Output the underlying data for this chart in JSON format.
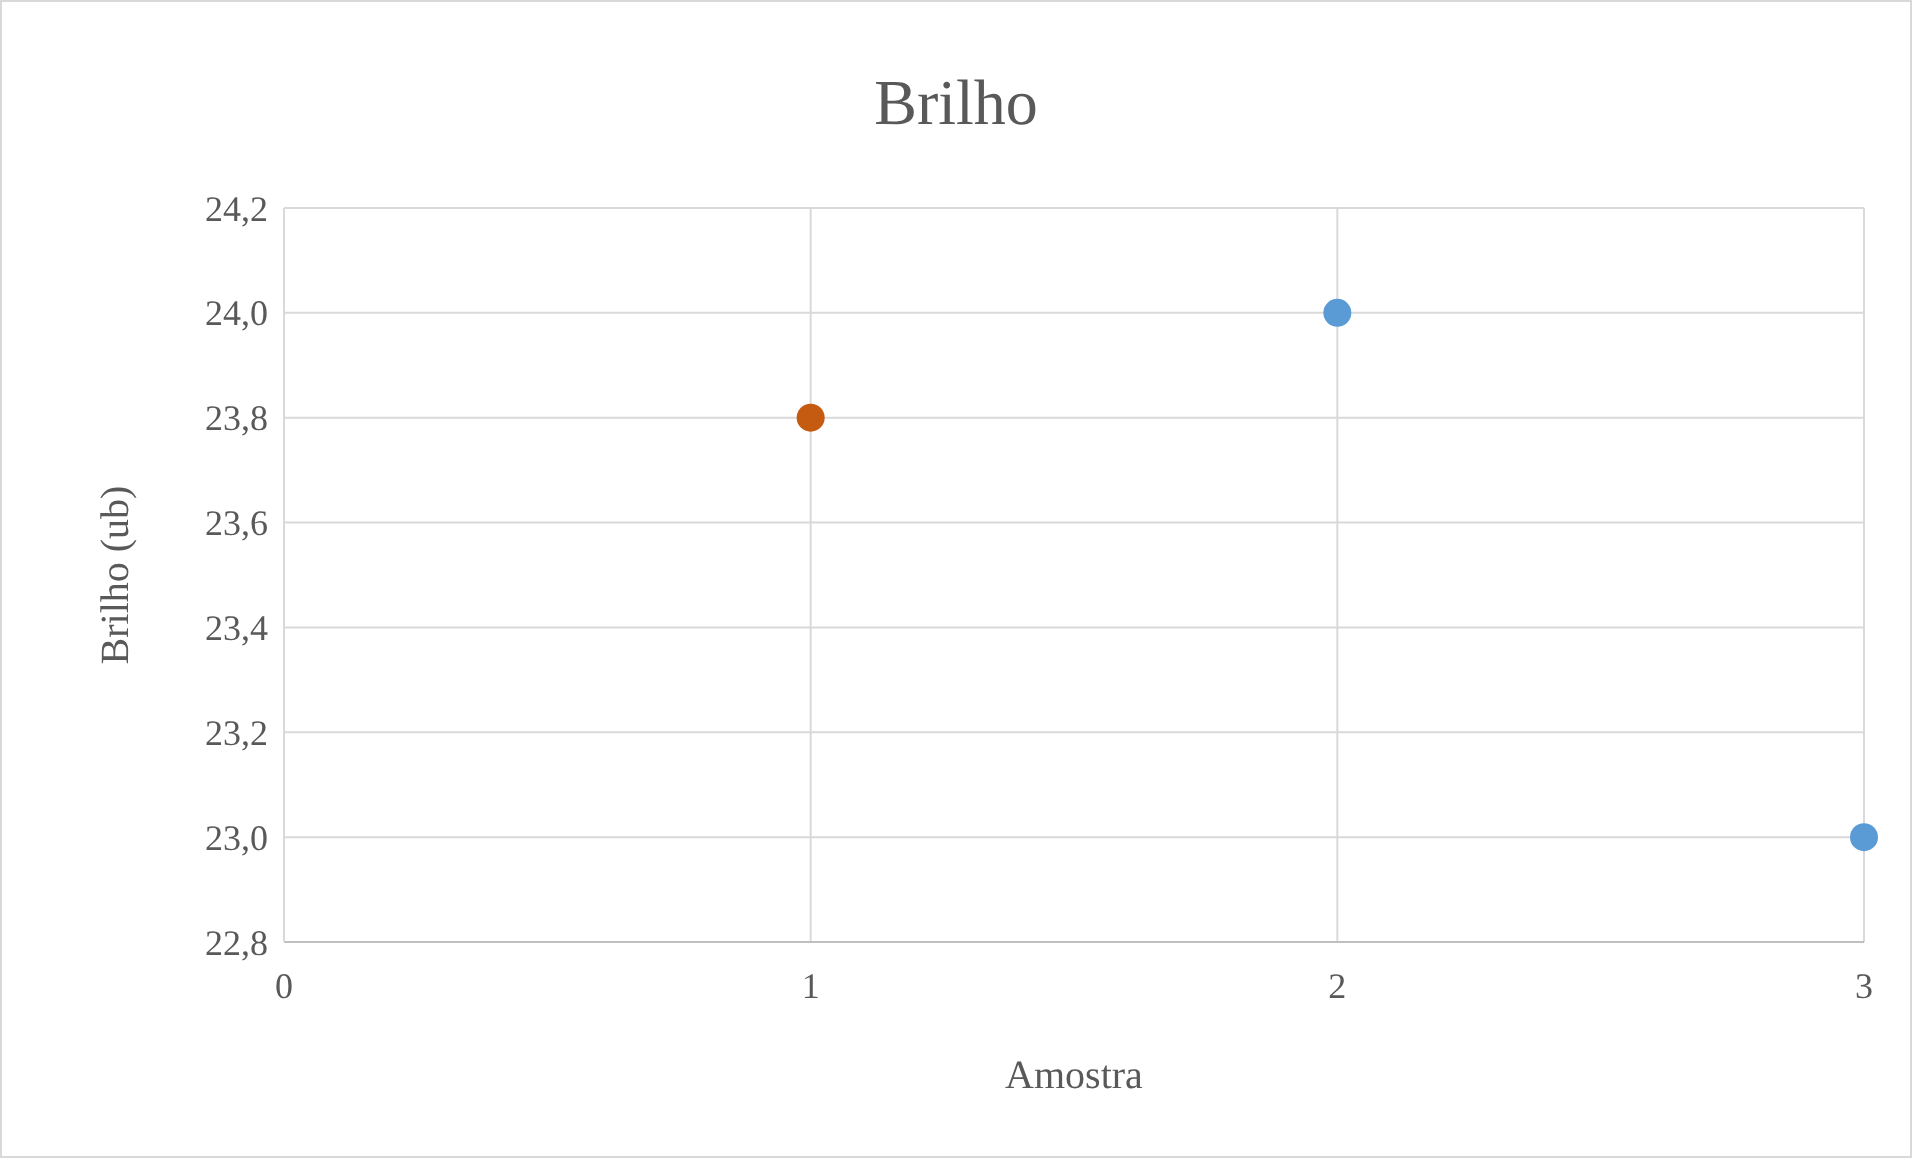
{
  "chart_data": {
    "type": "scatter",
    "title": "Brilho",
    "xlabel": "Amostra",
    "ylabel": "Brilho (ub)",
    "x": [
      1,
      2,
      3
    ],
    "values": [
      23.8,
      24.0,
      23.0
    ],
    "colors": [
      "#c55a11",
      "#5b9bd5",
      "#5b9bd5"
    ],
    "xlim": [
      0,
      3
    ],
    "xticks": [
      0,
      1,
      2,
      3
    ],
    "ylim": [
      22.8,
      24.2
    ],
    "yticks": [
      {
        "value": 22.8,
        "label": "22,8"
      },
      {
        "value": 23.0,
        "label": "23,0"
      },
      {
        "value": 23.2,
        "label": "23,2"
      },
      {
        "value": 23.4,
        "label": "23,4"
      },
      {
        "value": 23.6,
        "label": "23,6"
      },
      {
        "value": 23.8,
        "label": "23,8"
      },
      {
        "value": 24.0,
        "label": "24,0"
      },
      {
        "value": 24.2,
        "label": "24,2"
      }
    ],
    "grid": true,
    "marker": "circle"
  }
}
